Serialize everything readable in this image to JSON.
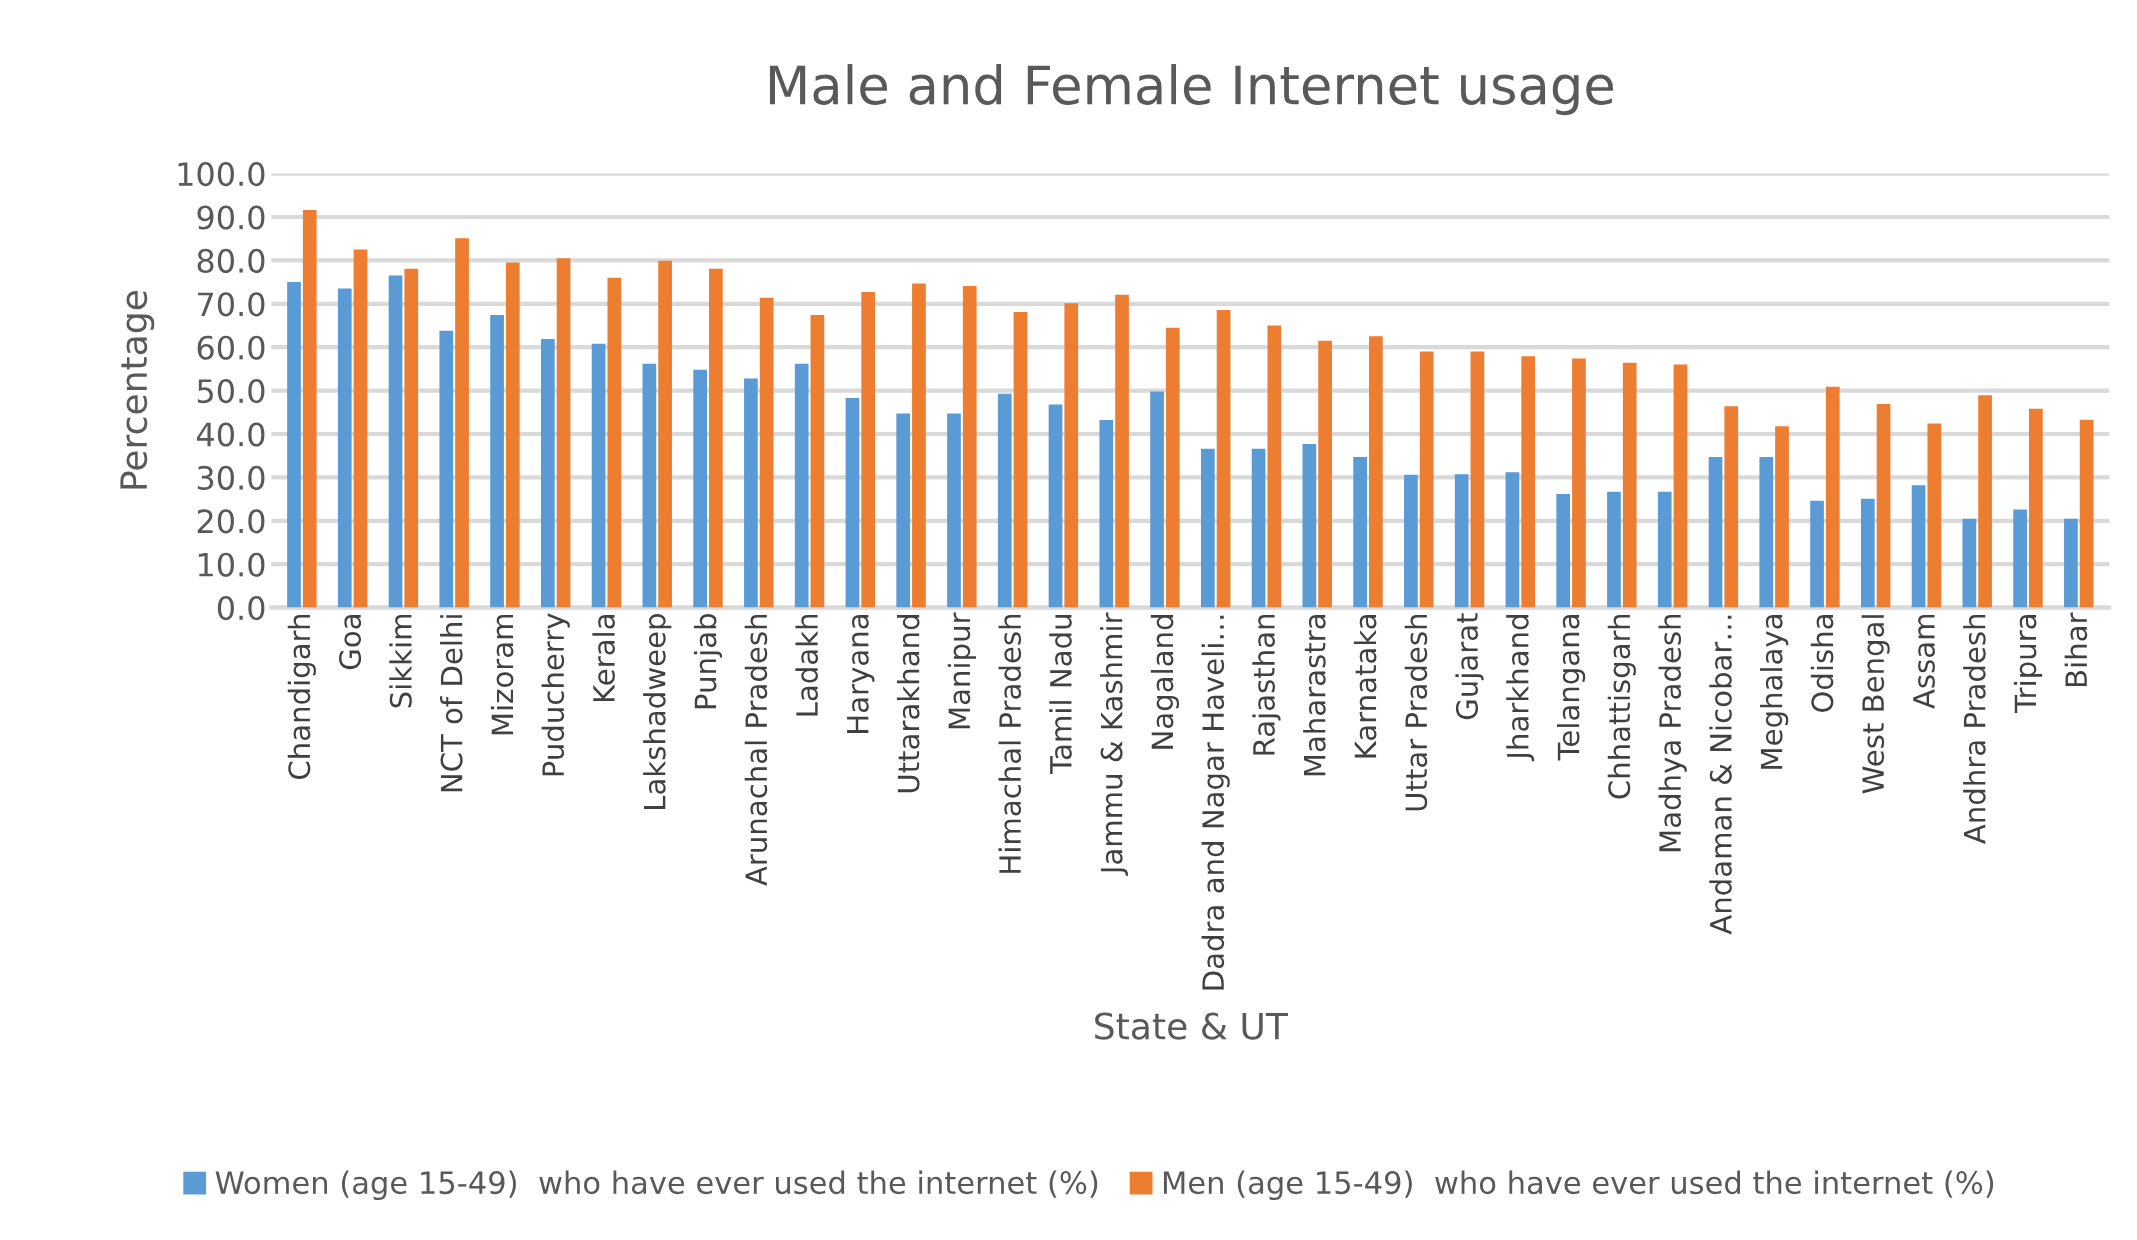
{
  "chart_data": {
    "type": "bar",
    "title": "Male and Female Internet usage",
    "xlabel": "State & UT",
    "ylabel": "Percentage",
    "categories": [
      "Chandigarh",
      "Goa",
      "Sikkim",
      "NCT of Delhi",
      "Mizoram",
      "Puducherry",
      "Kerala",
      "Lakshadweep",
      "Punjab",
      "Arunachal Pradesh",
      "Ladakh",
      "Haryana",
      "Uttarakhand",
      "Manipur",
      "Himachal Pradesh",
      "Tamil Nadu",
      "Jammu & Kashmir",
      "Nagaland",
      "Dadra and Nagar Haveli…",
      "Rajasthan",
      "Maharastra",
      "Karnataka",
      "Uttar Pradesh",
      "Gujarat",
      "Jharkhand",
      "Telangana",
      "Chhattisgarh",
      "Madhya Pradesh",
      "Andaman & Nicobar…",
      "Meghalaya",
      "Odisha",
      "West Bengal",
      "Assam",
      "Andhra Pradesh",
      "Tripura",
      "Bihar"
    ],
    "series": [
      {
        "name": "Women (age 15-49)  who have ever used the internet (%)",
        "color": "#5b9bd5",
        "values": [
          75.0,
          73.5,
          76.5,
          63.8,
          67.4,
          61.9,
          60.8,
          56.2,
          54.8,
          52.8,
          56.2,
          48.3,
          44.7,
          44.7,
          49.3,
          46.8,
          43.2,
          49.8,
          36.6,
          36.6,
          37.7,
          34.7,
          30.6,
          30.7,
          31.2,
          26.2,
          26.7,
          26.7,
          34.7,
          34.7,
          24.6,
          25.1,
          28.2,
          20.5,
          22.6,
          20.5
        ]
      },
      {
        "name": "Men (age 15-49)  who have ever used the internet (%)",
        "color": "#ed7d31",
        "values": [
          91.6,
          82.5,
          78.1,
          85.1,
          79.5,
          80.5,
          76.0,
          79.9,
          78.1,
          71.4,
          67.4,
          72.7,
          74.7,
          74.1,
          68.1,
          70.1,
          72.1,
          64.5,
          68.6,
          65.0,
          61.5,
          62.5,
          59.0,
          59.0,
          57.9,
          57.4,
          56.4,
          56.0,
          46.4,
          41.8,
          50.9,
          46.9,
          42.4,
          48.9,
          45.8,
          43.3
        ]
      }
    ],
    "ylim": [
      0,
      100
    ],
    "yticks": [
      {
        "value": 0,
        "label": "0.0"
      },
      {
        "value": 10,
        "label": "10.0"
      },
      {
        "value": 20,
        "label": "20.0"
      },
      {
        "value": 30,
        "label": "30.0"
      },
      {
        "value": 40,
        "label": "40.0"
      },
      {
        "value": 50,
        "label": "50.0"
      },
      {
        "value": 60,
        "label": "60.0"
      },
      {
        "value": 70,
        "label": "70.0"
      },
      {
        "value": 80,
        "label": "80.0"
      },
      {
        "value": 90,
        "label": "90.0"
      },
      {
        "value": 100,
        "label": "100.0"
      }
    ],
    "grid": "y",
    "legend": "bottom"
  }
}
